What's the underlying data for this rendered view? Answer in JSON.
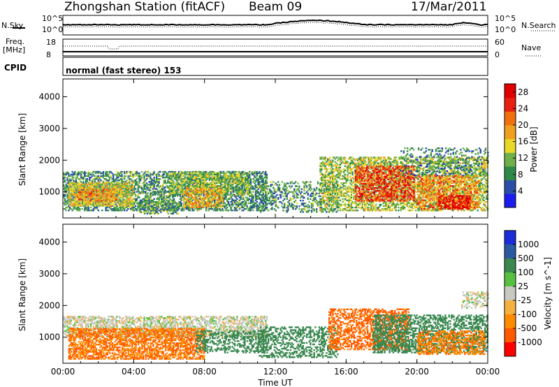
{
  "header": {
    "station": "Zhongshan Station (fitACF)",
    "beam": "Beam 09",
    "date": "17/Mar/2011"
  },
  "top_panels": {
    "nsky_label": "N.Sky",
    "nsky_ticks": [
      "10^5",
      "10^0"
    ],
    "nsearch_label": "N.Search",
    "nsearch_ticks": [
      "10^5",
      "10^0"
    ],
    "freq_label_1": "Freq.",
    "freq_label_2": "[MHz]",
    "freq_ticks": [
      "18",
      "8"
    ],
    "nave_label": "Nave",
    "nave_ticks": [
      "60",
      "0"
    ],
    "cpid_label": "CPID",
    "cpid_value": "normal (fast stereo) 153"
  },
  "colors": {
    "power_scale": [
      "#1c1cf0",
      "#2b4fa8",
      "#2f8a4a",
      "#6fb04a",
      "#e8d828",
      "#f0a020",
      "#f07010",
      "#e82010",
      "#e00000"
    ],
    "velocity_scale": [
      "#ff0000",
      "#ff5a00",
      "#ff8c00",
      "#f5b040",
      "#c8c8c0",
      "#c8c8c0",
      "#58c040",
      "#3a8850",
      "#2a5aa0",
      "#1c2cd8"
    ]
  },
  "chart_data": [
    {
      "type": "heatmap",
      "panel": "power",
      "xlabel": "",
      "ylabel": "Slant Range [km]",
      "x_ticks": [
        "00:00",
        "04:00",
        "08:00",
        "12:00",
        "16:00",
        "20:00",
        "00:00"
      ],
      "y_ticks": [
        "1000",
        "2000",
        "3000",
        "4000"
      ],
      "xlim_hours": [
        0,
        24
      ],
      "ylim_km": [
        180,
        4560
      ],
      "colorbar": {
        "label": "Power [dB]",
        "ticks": [
          "4",
          "8",
          "12",
          "16",
          "20",
          "24",
          "28"
        ],
        "range": [
          0,
          30
        ]
      },
      "echo_regions": [
        {
          "t0": 0.0,
          "t1": 11.5,
          "r0": 400,
          "r1": 1650,
          "value": 9,
          "density": 0.55
        },
        {
          "t0": 0.3,
          "t1": 4.0,
          "r0": 550,
          "r1": 1300,
          "value": 15,
          "density": 0.6
        },
        {
          "t0": 0.8,
          "t1": 3.0,
          "r0": 700,
          "r1": 1100,
          "value": 20,
          "density": 0.5
        },
        {
          "t0": 6.0,
          "t1": 10.5,
          "r0": 900,
          "r1": 1600,
          "value": 12,
          "density": 0.55
        },
        {
          "t0": 6.8,
          "t1": 9.0,
          "r0": 500,
          "r1": 1100,
          "value": 18,
          "density": 0.5
        },
        {
          "t0": 4.3,
          "t1": 6.5,
          "r0": 300,
          "r1": 700,
          "value": 10,
          "density": 0.5
        },
        {
          "t0": 11.0,
          "t1": 15.5,
          "r0": 350,
          "r1": 1300,
          "value": 9,
          "density": 0.35
        },
        {
          "t0": 14.5,
          "t1": 24.0,
          "r0": 400,
          "r1": 2100,
          "value": 13,
          "density": 0.5
        },
        {
          "t0": 16.5,
          "t1": 19.8,
          "r0": 700,
          "r1": 1800,
          "value": 24,
          "density": 0.55
        },
        {
          "t0": 20.0,
          "t1": 23.5,
          "r0": 450,
          "r1": 1500,
          "value": 20,
          "density": 0.5
        },
        {
          "t0": 21.2,
          "t1": 23.0,
          "r0": 450,
          "r1": 900,
          "value": 27,
          "density": 0.6
        },
        {
          "t0": 19.0,
          "t1": 24.0,
          "r0": 1500,
          "r1": 2400,
          "value": 8,
          "density": 0.2
        }
      ]
    },
    {
      "type": "heatmap",
      "panel": "velocity",
      "xlabel": "Time UT",
      "ylabel": "Slant Range [km]",
      "x_ticks": [
        "00:00",
        "04:00",
        "08:00",
        "12:00",
        "16:00",
        "20:00",
        "00:00"
      ],
      "y_ticks": [
        "1000",
        "2000",
        "3000",
        "4000"
      ],
      "xlim_hours": [
        0,
        24
      ],
      "ylim_km": [
        180,
        4560
      ],
      "colorbar": {
        "label": "Velocity [m s^-1]",
        "ticks": [
          "1000",
          "500",
          "100",
          "25",
          "-25",
          "-100",
          "-500",
          "-1000"
        ]
      },
      "echo_regions": [
        {
          "t0": 0.0,
          "t1": 11.5,
          "r0": 1000,
          "r1": 1650,
          "value": 0,
          "density": 0.55
        },
        {
          "t0": 0.3,
          "t1": 8.0,
          "r0": 300,
          "r1": 1250,
          "value": -300,
          "density": 0.6
        },
        {
          "t0": 7.5,
          "t1": 11.5,
          "r0": 500,
          "r1": 1200,
          "value": 150,
          "density": 0.4
        },
        {
          "t0": 11.0,
          "t1": 15.5,
          "r0": 350,
          "r1": 1300,
          "value": 200,
          "density": 0.35
        },
        {
          "t0": 15.0,
          "t1": 19.5,
          "r0": 600,
          "r1": 1900,
          "value": -400,
          "density": 0.5
        },
        {
          "t0": 17.5,
          "t1": 24.0,
          "r0": 500,
          "r1": 1700,
          "value": 120,
          "density": 0.5
        },
        {
          "t0": 20.0,
          "t1": 23.8,
          "r0": 450,
          "r1": 1200,
          "value": -250,
          "density": 0.45
        },
        {
          "t0": 22.5,
          "t1": 24.0,
          "r0": 1900,
          "r1": 2400,
          "value": 0,
          "density": 0.4
        }
      ]
    }
  ]
}
